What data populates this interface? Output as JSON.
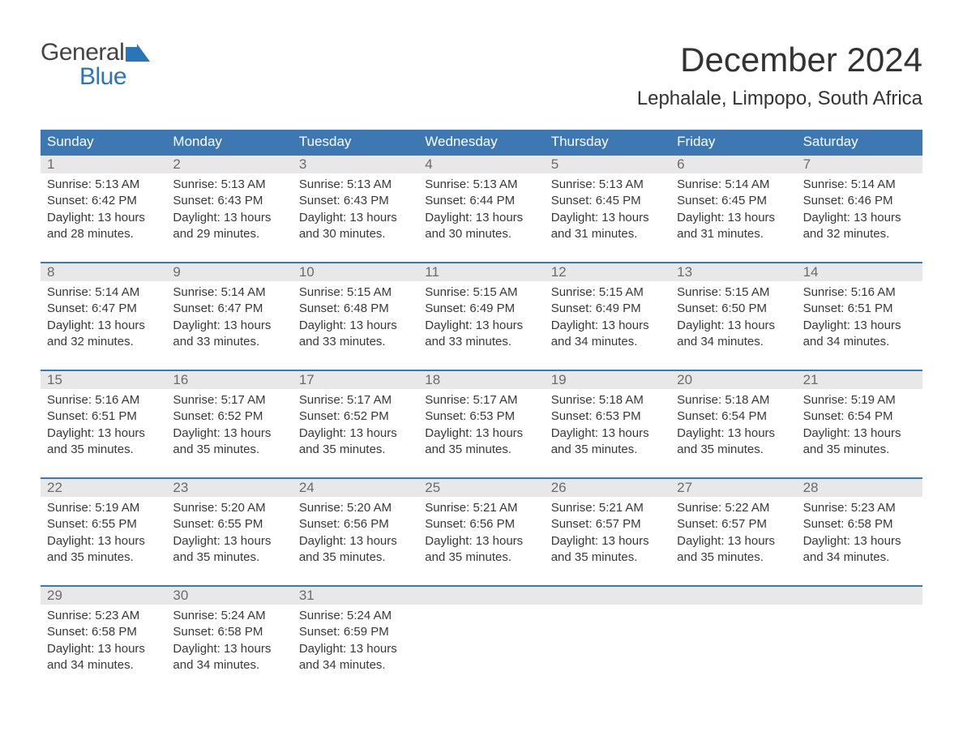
{
  "logo": {
    "text1": "General",
    "text2": "Blue",
    "icon_color": "#2a74b8"
  },
  "title": "December 2024",
  "location": "Lephalale, Limpopo, South Africa",
  "colors": {
    "header_bg": "#3e78b2",
    "header_text": "#ffffff",
    "daynum_bg": "#e8e8e8",
    "daynum_text": "#6b6b6b",
    "body_text": "#383838",
    "accent": "#2a74b8"
  },
  "days_of_week": [
    "Sunday",
    "Monday",
    "Tuesday",
    "Wednesday",
    "Thursday",
    "Friday",
    "Saturday"
  ],
  "label_prefixes": {
    "sunrise": "Sunrise: ",
    "sunset": "Sunset: ",
    "daylight": "Daylight: "
  },
  "weeks": [
    [
      {
        "n": "1",
        "sunrise": "5:13 AM",
        "sunset": "6:42 PM",
        "daylight": "13 hours and 28 minutes."
      },
      {
        "n": "2",
        "sunrise": "5:13 AM",
        "sunset": "6:43 PM",
        "daylight": "13 hours and 29 minutes."
      },
      {
        "n": "3",
        "sunrise": "5:13 AM",
        "sunset": "6:43 PM",
        "daylight": "13 hours and 30 minutes."
      },
      {
        "n": "4",
        "sunrise": "5:13 AM",
        "sunset": "6:44 PM",
        "daylight": "13 hours and 30 minutes."
      },
      {
        "n": "5",
        "sunrise": "5:13 AM",
        "sunset": "6:45 PM",
        "daylight": "13 hours and 31 minutes."
      },
      {
        "n": "6",
        "sunrise": "5:14 AM",
        "sunset": "6:45 PM",
        "daylight": "13 hours and 31 minutes."
      },
      {
        "n": "7",
        "sunrise": "5:14 AM",
        "sunset": "6:46 PM",
        "daylight": "13 hours and 32 minutes."
      }
    ],
    [
      {
        "n": "8",
        "sunrise": "5:14 AM",
        "sunset": "6:47 PM",
        "daylight": "13 hours and 32 minutes."
      },
      {
        "n": "9",
        "sunrise": "5:14 AM",
        "sunset": "6:47 PM",
        "daylight": "13 hours and 33 minutes."
      },
      {
        "n": "10",
        "sunrise": "5:15 AM",
        "sunset": "6:48 PM",
        "daylight": "13 hours and 33 minutes."
      },
      {
        "n": "11",
        "sunrise": "5:15 AM",
        "sunset": "6:49 PM",
        "daylight": "13 hours and 33 minutes."
      },
      {
        "n": "12",
        "sunrise": "5:15 AM",
        "sunset": "6:49 PM",
        "daylight": "13 hours and 34 minutes."
      },
      {
        "n": "13",
        "sunrise": "5:15 AM",
        "sunset": "6:50 PM",
        "daylight": "13 hours and 34 minutes."
      },
      {
        "n": "14",
        "sunrise": "5:16 AM",
        "sunset": "6:51 PM",
        "daylight": "13 hours and 34 minutes."
      }
    ],
    [
      {
        "n": "15",
        "sunrise": "5:16 AM",
        "sunset": "6:51 PM",
        "daylight": "13 hours and 35 minutes."
      },
      {
        "n": "16",
        "sunrise": "5:17 AM",
        "sunset": "6:52 PM",
        "daylight": "13 hours and 35 minutes."
      },
      {
        "n": "17",
        "sunrise": "5:17 AM",
        "sunset": "6:52 PM",
        "daylight": "13 hours and 35 minutes."
      },
      {
        "n": "18",
        "sunrise": "5:17 AM",
        "sunset": "6:53 PM",
        "daylight": "13 hours and 35 minutes."
      },
      {
        "n": "19",
        "sunrise": "5:18 AM",
        "sunset": "6:53 PM",
        "daylight": "13 hours and 35 minutes."
      },
      {
        "n": "20",
        "sunrise": "5:18 AM",
        "sunset": "6:54 PM",
        "daylight": "13 hours and 35 minutes."
      },
      {
        "n": "21",
        "sunrise": "5:19 AM",
        "sunset": "6:54 PM",
        "daylight": "13 hours and 35 minutes."
      }
    ],
    [
      {
        "n": "22",
        "sunrise": "5:19 AM",
        "sunset": "6:55 PM",
        "daylight": "13 hours and 35 minutes."
      },
      {
        "n": "23",
        "sunrise": "5:20 AM",
        "sunset": "6:55 PM",
        "daylight": "13 hours and 35 minutes."
      },
      {
        "n": "24",
        "sunrise": "5:20 AM",
        "sunset": "6:56 PM",
        "daylight": "13 hours and 35 minutes."
      },
      {
        "n": "25",
        "sunrise": "5:21 AM",
        "sunset": "6:56 PM",
        "daylight": "13 hours and 35 minutes."
      },
      {
        "n": "26",
        "sunrise": "5:21 AM",
        "sunset": "6:57 PM",
        "daylight": "13 hours and 35 minutes."
      },
      {
        "n": "27",
        "sunrise": "5:22 AM",
        "sunset": "6:57 PM",
        "daylight": "13 hours and 35 minutes."
      },
      {
        "n": "28",
        "sunrise": "5:23 AM",
        "sunset": "6:58 PM",
        "daylight": "13 hours and 34 minutes."
      }
    ],
    [
      {
        "n": "29",
        "sunrise": "5:23 AM",
        "sunset": "6:58 PM",
        "daylight": "13 hours and 34 minutes."
      },
      {
        "n": "30",
        "sunrise": "5:24 AM",
        "sunset": "6:58 PM",
        "daylight": "13 hours and 34 minutes."
      },
      {
        "n": "31",
        "sunrise": "5:24 AM",
        "sunset": "6:59 PM",
        "daylight": "13 hours and 34 minutes."
      },
      null,
      null,
      null,
      null
    ]
  ]
}
